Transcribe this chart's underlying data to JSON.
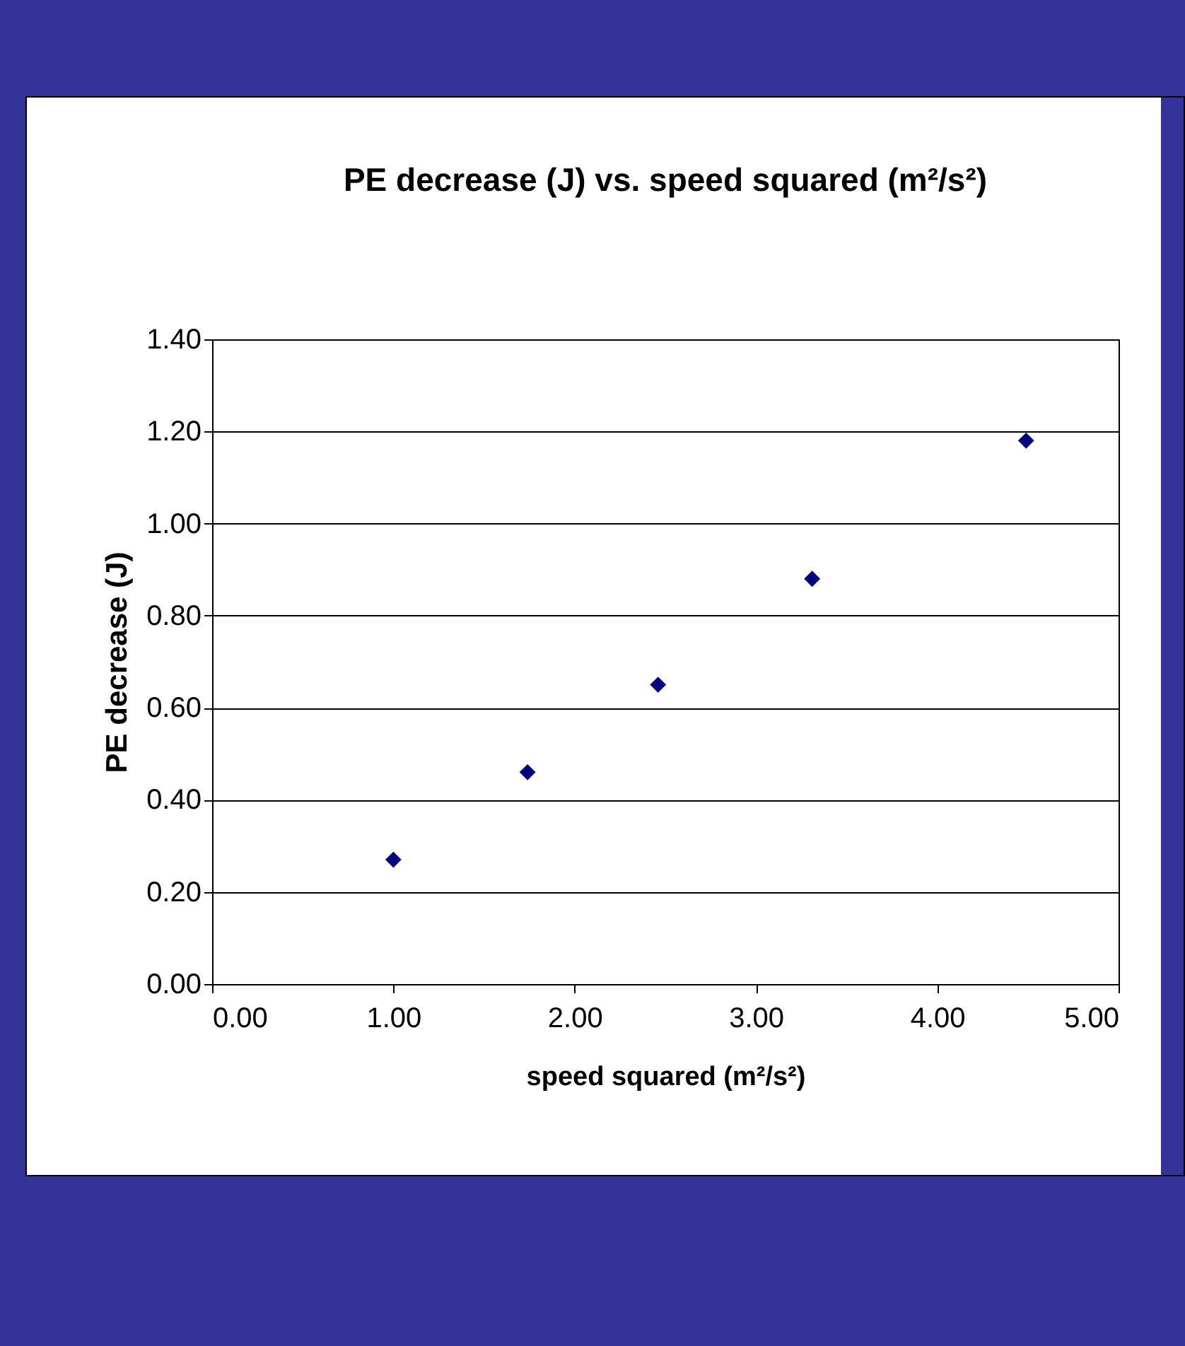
{
  "chart_data": {
    "type": "scatter",
    "title": "PE decrease (J) vs. speed squared (m²/s²)",
    "xlabel": "speed squared (m²/s²)",
    "ylabel": "PE decrease (J)",
    "x": [
      1.0,
      1.74,
      2.46,
      3.31,
      4.49
    ],
    "series": [
      {
        "color": "#000080",
        "values": [
          0.27,
          0.46,
          0.65,
          0.88,
          1.18
        ]
      }
    ],
    "xlim": [
      0,
      5
    ],
    "ylim": [
      0,
      1.4
    ],
    "xticks": [
      {
        "value": 0,
        "label": "0.00"
      },
      {
        "value": 1,
        "label": "1.00"
      },
      {
        "value": 2,
        "label": "2.00"
      },
      {
        "value": 3,
        "label": "3.00"
      },
      {
        "value": 4,
        "label": "4.00"
      },
      {
        "value": 5,
        "label": "5.00"
      }
    ],
    "yticks": [
      {
        "value": 0,
        "label": "0.00"
      },
      {
        "value": 0.2,
        "label": "0.20"
      },
      {
        "value": 0.4,
        "label": "0.40"
      },
      {
        "value": 0.6,
        "label": "0.60"
      },
      {
        "value": 0.8,
        "label": "0.80"
      },
      {
        "value": 1.0,
        "label": "1.00"
      },
      {
        "value": 1.2,
        "label": "1.20"
      },
      {
        "value": 1.4,
        "label": "1.40"
      }
    ],
    "grid": "y",
    "marker": "diamond"
  }
}
